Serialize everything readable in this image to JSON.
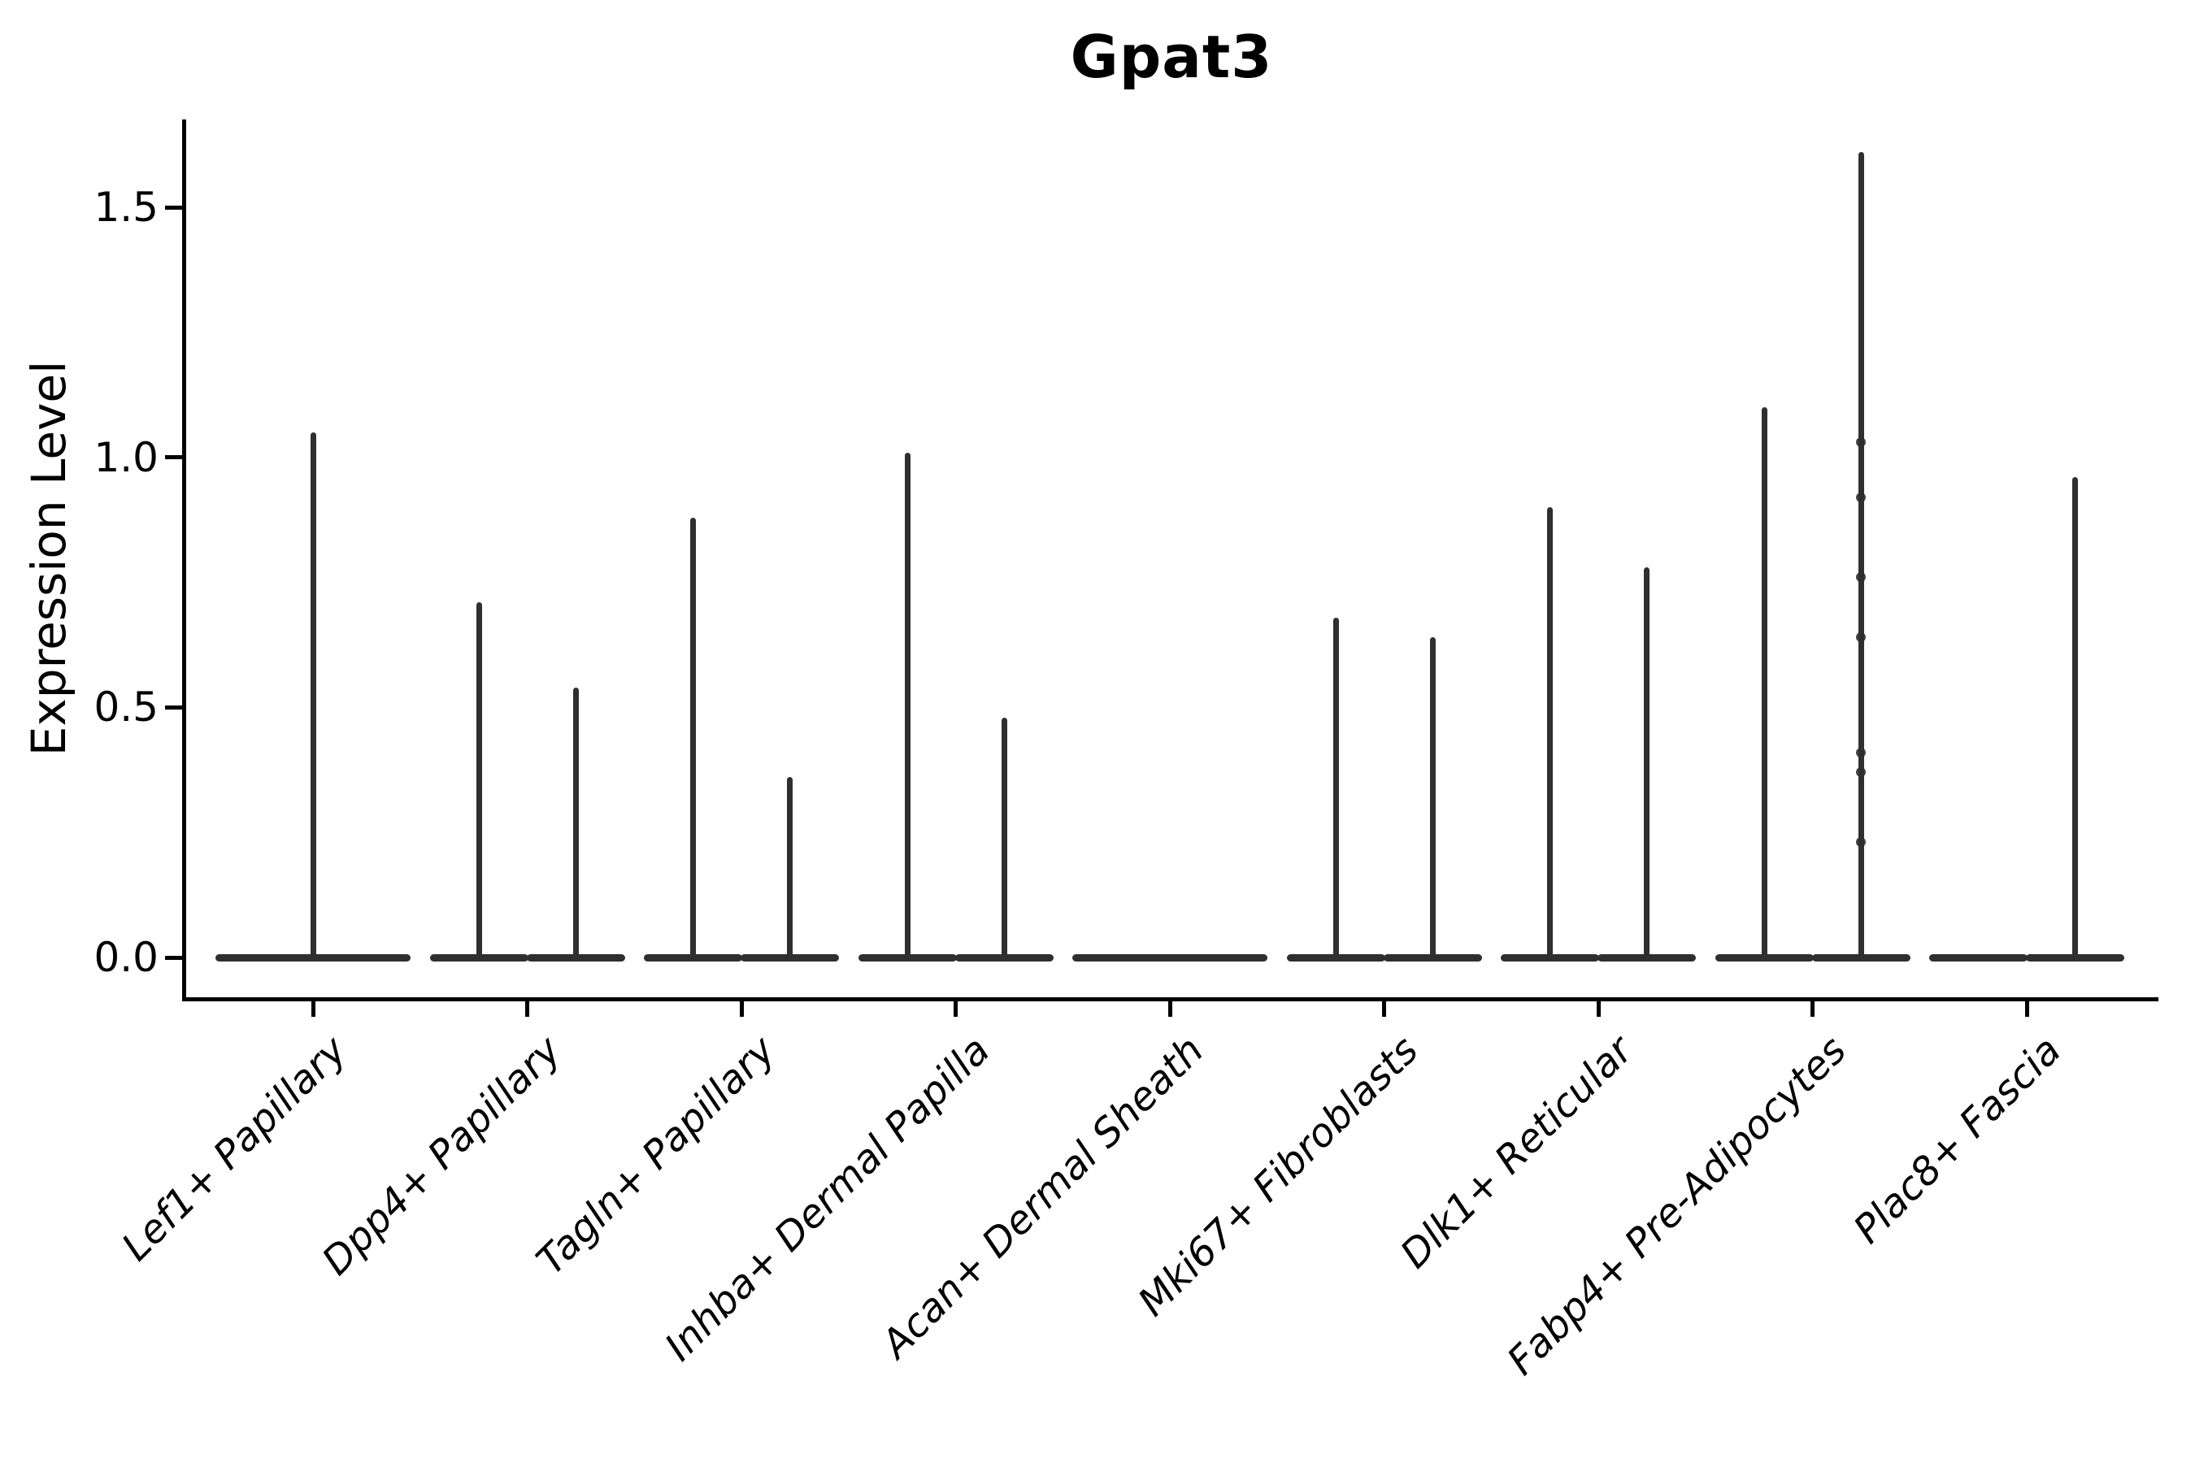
{
  "title": "Gpat3",
  "axes": {
    "ylabel": "Expression Level",
    "ytick_labels": [
      "0.0",
      "0.5",
      "1.0",
      "1.5"
    ]
  },
  "chart_data": {
    "type": "violin",
    "title": "Gpat3",
    "ylabel": "Expression Level",
    "xlabel": "",
    "ylim": [
      0,
      1.68
    ],
    "yticks": [
      0.0,
      0.5,
      1.0,
      1.5
    ],
    "grid": false,
    "legend": "none",
    "color": "#2f2f2f",
    "categories": [
      "Lef1+ Papillary",
      "Dpp4+ Papillary",
      "Tagln+ Papillary",
      "Inhba+ Dermal Papilla",
      "Acan+ Dermal Sheath",
      "Mki67+ Fibroblasts",
      "Dlk1+ Reticular",
      "Fabp4+ Pre-Adipocytes",
      "Plac8+ Fascia"
    ],
    "violins": [
      {
        "category": "Lef1+ Papillary",
        "parts": [
          {
            "pos": "center",
            "max": 1.05
          }
        ]
      },
      {
        "category": "Dpp4+ Papillary",
        "parts": [
          {
            "pos": "left",
            "max": 0.71
          },
          {
            "pos": "right",
            "max": 0.54
          }
        ]
      },
      {
        "category": "Tagln+ Papillary",
        "parts": [
          {
            "pos": "left",
            "max": 0.88
          },
          {
            "pos": "right",
            "max": 0.36
          }
        ]
      },
      {
        "category": "Inhba+ Dermal Papilla",
        "parts": [
          {
            "pos": "left",
            "max": 1.01
          },
          {
            "pos": "right",
            "max": 0.48
          }
        ]
      },
      {
        "category": "Acan+ Dermal Sheath",
        "parts": [
          {
            "pos": "center",
            "max": 0
          }
        ]
      },
      {
        "category": "Mki67+ Fibroblasts",
        "parts": [
          {
            "pos": "left",
            "max": 0.68
          },
          {
            "pos": "right",
            "max": 0.64
          }
        ]
      },
      {
        "category": "Dlk1+ Reticular",
        "parts": [
          {
            "pos": "left",
            "max": 0.9
          },
          {
            "pos": "right",
            "max": 0.78
          }
        ]
      },
      {
        "category": "Fabp4+ Pre-Adipocytes",
        "parts": [
          {
            "pos": "left",
            "max": 1.1
          },
          {
            "pos": "right",
            "max": 1.61
          }
        ]
      },
      {
        "category": "Plac8+ Fascia",
        "parts": [
          {
            "pos": "left",
            "max": 0
          },
          {
            "pos": "right",
            "max": 0.96
          }
        ]
      }
    ],
    "jitter_dots": {
      "category": "Fabp4+ Pre-Adipocytes",
      "category_index": 7,
      "pos": "right",
      "values": [
        1.03,
        0.92,
        0.76,
        0.64,
        0.41,
        0.37,
        0.23
      ]
    }
  }
}
